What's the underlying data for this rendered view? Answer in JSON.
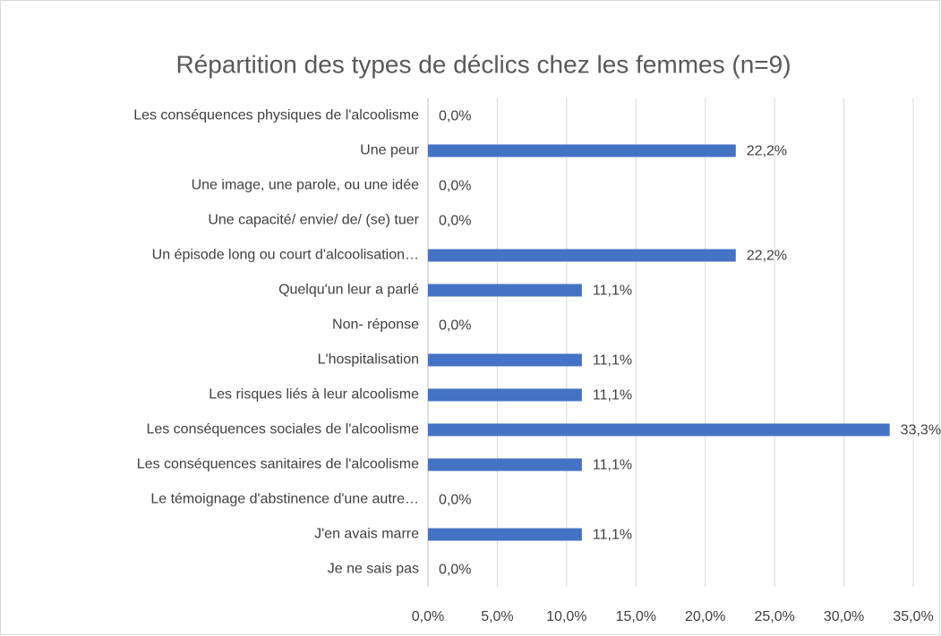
{
  "chart_data": {
    "type": "bar",
    "orientation": "horizontal",
    "title": "Répartition des types de déclics chez les femmes (n=9)",
    "categories": [
      "Les conséquences physiques de l'alcoolisme",
      "Une peur",
      "Une image, une parole, ou une idée",
      "Une capacité/ envie/ de/ (se) tuer",
      "Un épisode long ou court d'alcoolisation…",
      "Quelqu'un leur a parlé",
      "Non- réponse",
      "L'hospitalisation",
      "Les risques liés à leur alcoolisme",
      "Les conséquences sociales de l'alcoolisme",
      "Les conséquences sanitaires de l'alcoolisme",
      "Le témoignage d'abstinence d'une autre…",
      "J'en avais marre",
      "Je ne sais pas"
    ],
    "values": [
      0,
      22.2,
      0,
      0,
      22.2,
      11.1,
      0,
      11.1,
      11.1,
      33.3,
      11.1,
      0,
      11.1,
      0
    ],
    "value_labels": [
      "0,0%",
      "22,2%",
      "0,0%",
      "0,0%",
      "22,2%",
      "11,1%",
      "0,0%",
      "11,1%",
      "11,1%",
      "33,3%",
      "11,1%",
      "0,0%",
      "11,1%",
      "0,0%"
    ],
    "color": "#4472c4",
    "xlim": [
      0,
      35
    ],
    "xticks": [
      {
        "value": 0,
        "label": "0,0%"
      },
      {
        "value": 5,
        "label": "5,0%"
      },
      {
        "value": 10,
        "label": "10,0%"
      },
      {
        "value": 15,
        "label": "15,0%"
      },
      {
        "value": 20,
        "label": "20,0%"
      },
      {
        "value": 25,
        "label": "25,0%"
      },
      {
        "value": 30,
        "label": "30,0%"
      },
      {
        "value": 35,
        "label": "35,0%"
      }
    ],
    "grid": true
  }
}
